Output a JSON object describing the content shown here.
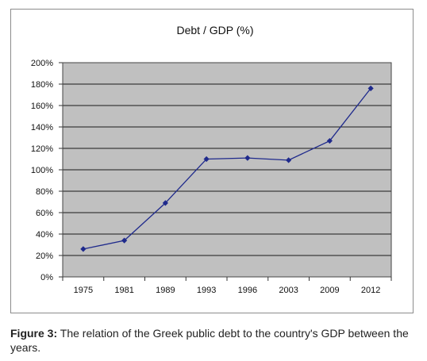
{
  "chart_data": {
    "type": "line",
    "title": "Debt / GDP  (%)",
    "xlabel": "",
    "ylabel": "",
    "categories": [
      "1975",
      "1981",
      "1989",
      "1993",
      "1996",
      "2003",
      "2009",
      "2012"
    ],
    "series": [
      {
        "values": [
          26,
          34,
          69,
          110,
          111,
          109,
          127,
          176
        ]
      }
    ],
    "ylim": [
      0,
      200
    ],
    "yticks": [
      "0%",
      "20%",
      "40%",
      "60%",
      "80%",
      "100%",
      "120%",
      "140%",
      "160%",
      "180%",
      "200%"
    ],
    "grid": true,
    "legend": "none",
    "colors": {
      "line": "#1f2a8c",
      "plot_bg": "#c0c0c0",
      "grid": "#1a1a1a"
    }
  },
  "caption": {
    "label": "Figure 3:",
    "text": " The relation of the Greek public debt to the country's GDP between the years."
  }
}
